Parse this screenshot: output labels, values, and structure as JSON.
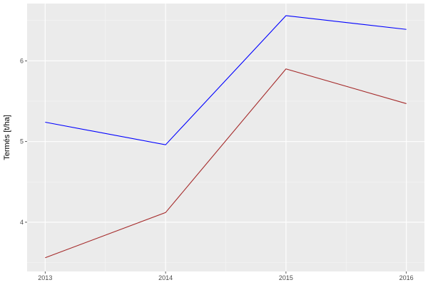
{
  "chart_data": {
    "type": "line",
    "title": "",
    "xlabel": "",
    "ylabel": "Termés [t/ha]",
    "x": [
      2013,
      2014,
      2015,
      2016
    ],
    "x_tick_labels": [
      "2013",
      "2014",
      "2015",
      "2016"
    ],
    "y_ticks": [
      4,
      5,
      6
    ],
    "y_tick_labels": [
      "4",
      "5",
      "6"
    ],
    "xlim": [
      2012.85,
      2016.15
    ],
    "ylim": [
      3.39,
      6.71
    ],
    "grid": true,
    "legend": "none",
    "background": "#ebebeb",
    "series": [
      {
        "color": "#0000ff",
        "values": [
          5.24,
          4.96,
          6.56,
          6.39
        ]
      },
      {
        "color": "#a52a2a",
        "values": [
          3.56,
          4.12,
          5.9,
          5.47
        ]
      }
    ]
  }
}
